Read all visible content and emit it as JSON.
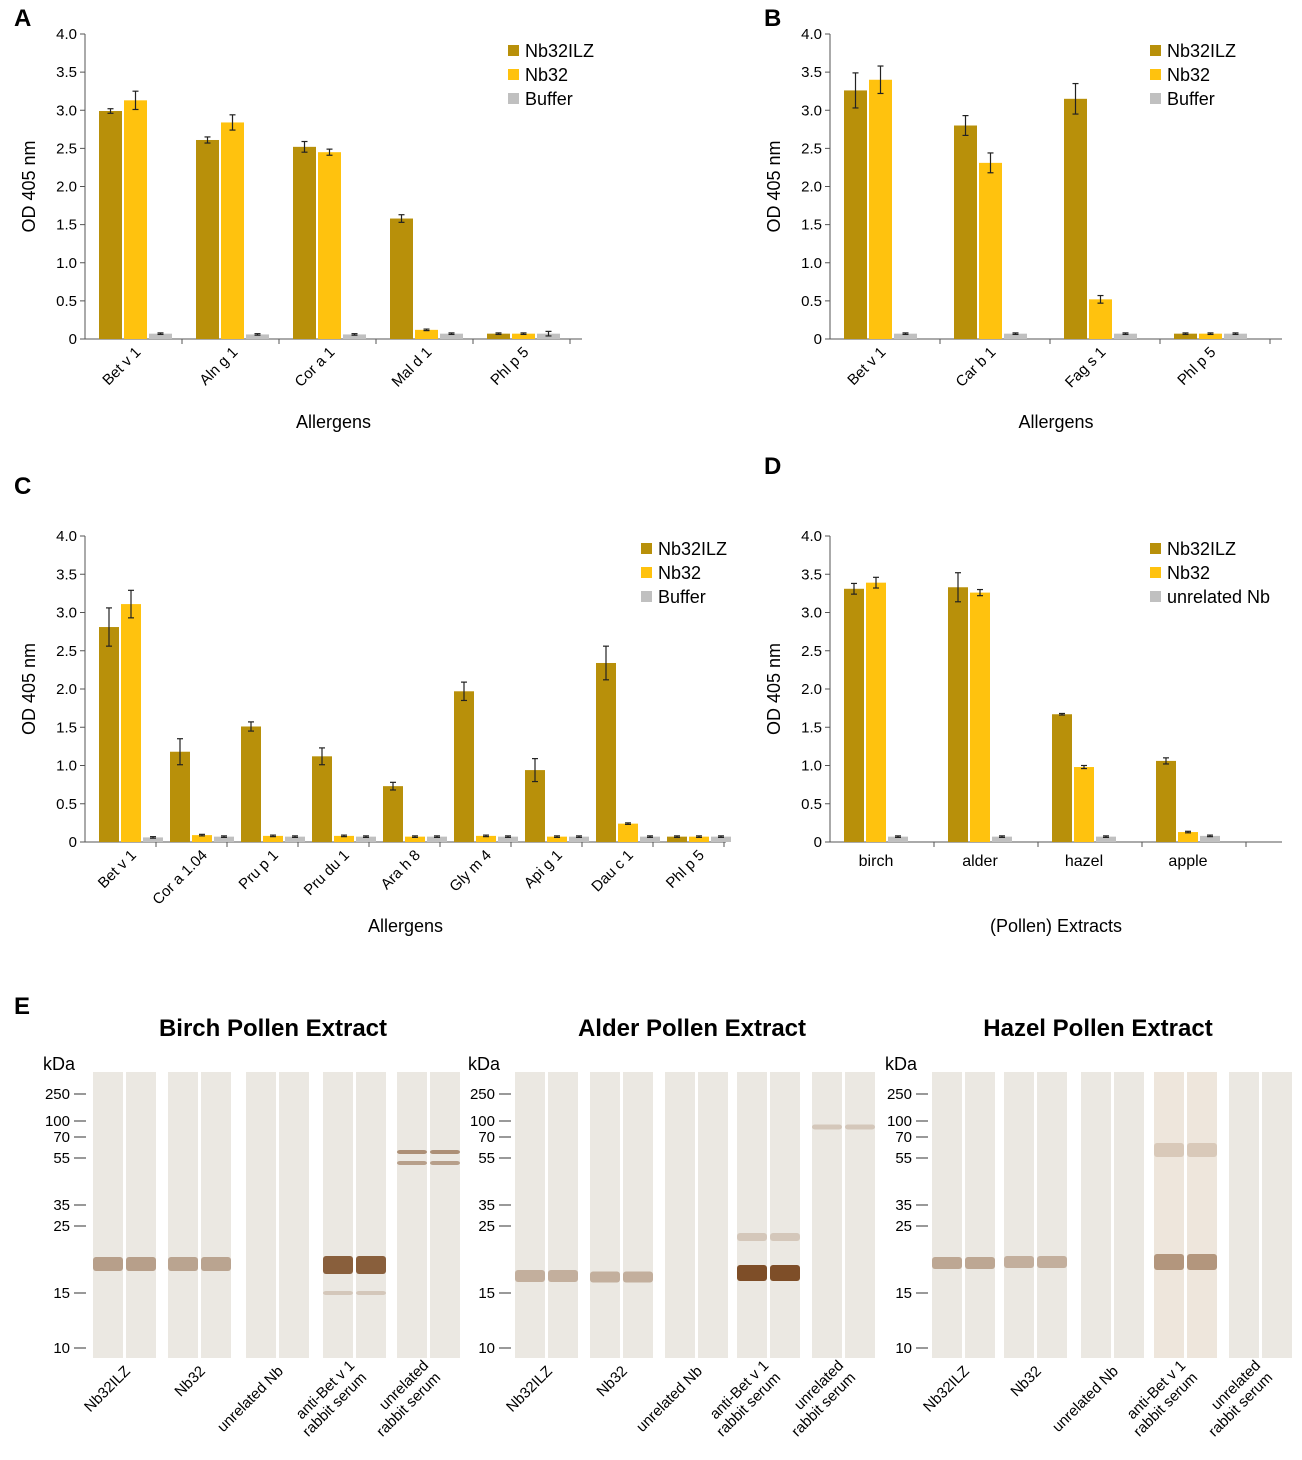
{
  "colors": {
    "nb32ilz": "#B8900A",
    "nb32": "#FFC20E",
    "buffer": "#C0C0C0",
    "axis": "#555555"
  },
  "chart_data": [
    {
      "panel": "A",
      "type": "bar",
      "ylabel": "OD 405 nm",
      "xlabel": "Allergens",
      "ylim": [
        0,
        4.0
      ],
      "yticks": [
        "0",
        "0.5",
        "1.0",
        "1.5",
        "2.0",
        "2.5",
        "3.0",
        "3.5",
        "4.0"
      ],
      "legend_position": "top-right",
      "categories": [
        "Bet v 1",
        "Aln g 1",
        "Cor a 1",
        "Mal d 1",
        "Phl p 5"
      ],
      "series": [
        {
          "name": "Nb32ILZ",
          "values": [
            2.99,
            2.61,
            2.52,
            1.58,
            0.07
          ],
          "errors": [
            0.03,
            0.04,
            0.07,
            0.05,
            0.01
          ]
        },
        {
          "name": "Nb32",
          "values": [
            3.13,
            2.84,
            2.45,
            0.12,
            0.07
          ],
          "errors": [
            0.12,
            0.1,
            0.04,
            0.01,
            0.01
          ]
        },
        {
          "name": "Buffer",
          "values": [
            0.07,
            0.06,
            0.06,
            0.07,
            0.07
          ],
          "errors": [
            0.01,
            0.01,
            0.01,
            0.01,
            0.03
          ]
        }
      ]
    },
    {
      "panel": "B",
      "type": "bar",
      "ylabel": "OD 405 nm",
      "xlabel": "Allergens",
      "ylim": [
        0,
        4.0
      ],
      "yticks": [
        "0",
        "0.5",
        "1.0",
        "1.5",
        "2.0",
        "2.5",
        "3.0",
        "3.5",
        "4.0"
      ],
      "legend_position": "top-right",
      "categories": [
        "Bet v 1",
        "Car b 1",
        "Fag s 1",
        "Phl p 5"
      ],
      "series": [
        {
          "name": "Nb32ILZ",
          "values": [
            3.26,
            2.8,
            3.15,
            0.07
          ],
          "errors": [
            0.23,
            0.13,
            0.2,
            0.01
          ]
        },
        {
          "name": "Nb32",
          "values": [
            3.4,
            2.31,
            0.52,
            0.07
          ],
          "errors": [
            0.18,
            0.13,
            0.05,
            0.01
          ]
        },
        {
          "name": "Buffer",
          "values": [
            0.07,
            0.07,
            0.07,
            0.07
          ],
          "errors": [
            0.01,
            0.01,
            0.01,
            0.01
          ]
        }
      ]
    },
    {
      "panel": "C",
      "type": "bar",
      "ylabel": "OD 405 nm",
      "xlabel": "Allergens",
      "ylim": [
        0,
        4.0
      ],
      "yticks": [
        "0",
        "0.5",
        "1.0",
        "1.5",
        "2.0",
        "2.5",
        "3.0",
        "3.5",
        "4.0"
      ],
      "legend_position": "top-right",
      "categories": [
        "Bet v 1",
        "Cor a 1.04",
        "Pru p 1",
        "Pru du 1",
        "Ara h 8",
        "Gly m 4",
        "Api g 1",
        "Dau c 1",
        "Phl p 5"
      ],
      "series": [
        {
          "name": "Nb32ILZ",
          "values": [
            2.81,
            1.18,
            1.51,
            1.12,
            0.73,
            1.97,
            0.94,
            2.34,
            0.07
          ],
          "errors": [
            0.25,
            0.17,
            0.06,
            0.11,
            0.05,
            0.12,
            0.15,
            0.22,
            0.01
          ]
        },
        {
          "name": "Nb32",
          "values": [
            3.11,
            0.09,
            0.08,
            0.08,
            0.07,
            0.08,
            0.07,
            0.24,
            0.07
          ],
          "errors": [
            0.18,
            0.01,
            0.01,
            0.01,
            0.01,
            0.01,
            0.01,
            0.01,
            0.01
          ]
        },
        {
          "name": "Buffer",
          "values": [
            0.06,
            0.07,
            0.07,
            0.07,
            0.07,
            0.07,
            0.07,
            0.07,
            0.07
          ],
          "errors": [
            0.01,
            0.01,
            0.01,
            0.01,
            0.01,
            0.01,
            0.01,
            0.01,
            0.01
          ]
        }
      ]
    },
    {
      "panel": "D",
      "type": "bar",
      "ylabel": "OD 405 nm",
      "xlabel": "(Pollen) Extracts",
      "ylim": [
        0,
        4.0
      ],
      "yticks": [
        "0",
        "0.5",
        "1.0",
        "1.5",
        "2.0",
        "2.5",
        "3.0",
        "3.5",
        "4.0"
      ],
      "legend_position": "top-right",
      "categories": [
        "birch",
        "alder",
        "hazel",
        "apple"
      ],
      "series": [
        {
          "name": "Nb32ILZ",
          "values": [
            3.31,
            3.33,
            1.67,
            1.06
          ],
          "errors": [
            0.07,
            0.19,
            0.01,
            0.04
          ]
        },
        {
          "name": "Nb32",
          "values": [
            3.39,
            3.26,
            0.98,
            0.13
          ],
          "errors": [
            0.07,
            0.04,
            0.02,
            0.01
          ]
        },
        {
          "name": "unrelated Nb",
          "values": [
            0.07,
            0.07,
            0.07,
            0.08
          ],
          "errors": [
            0.01,
            0.01,
            0.01,
            0.01
          ]
        }
      ]
    }
  ],
  "western_blots": {
    "panel": "E",
    "kda_label": "kDa",
    "markers": [
      "250",
      "100",
      "70",
      "55",
      "35",
      "25",
      "15",
      "10"
    ],
    "marker_kda": [
      250,
      100,
      70,
      55,
      35,
      25,
      15,
      10
    ],
    "lane_labels": [
      "Nb32ILZ",
      "Nb32",
      "unrelated Nb",
      "anti-Bet v 1\nrabbit serum",
      "unrelated\nrabbit serum"
    ],
    "blots": [
      {
        "title": "Birch Pollen Extract"
      },
      {
        "title": "Alder Pollen Extract"
      },
      {
        "title": "Hazel Pollen Extract"
      }
    ]
  }
}
